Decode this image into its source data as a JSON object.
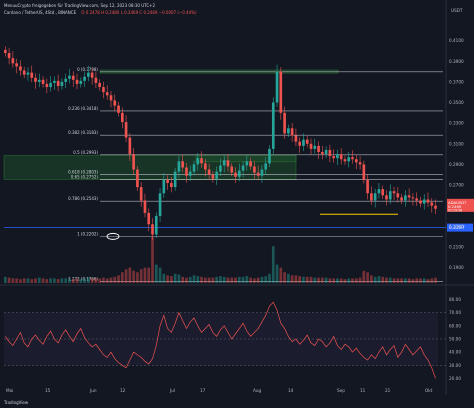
{
  "header": {
    "publisher": "MenuuCrypto freigegeben für TradingView.com, Sep 12, 2023 08:30 UTC+2",
    "symbol": "Cardano / TetherUS, 4Std., BINANCE",
    "ohlc": "O 0.2478  H 0.2480  L 0.2469  C 0.2469  −0.0007 (−0.44%)"
  },
  "footer": {
    "brand": "TradingView"
  },
  "colors": {
    "background": "#131722",
    "up": "#26a69a",
    "down": "#ef5350",
    "fib_line": "#d1d4dc",
    "support": "#f5d000",
    "price_tag": "#ef5350",
    "current_level": "#2962ff",
    "rsi": "#ef5350",
    "zone": "#1e4d2b"
  },
  "chart_data": [
    {
      "type": "candlestick",
      "symbol": "ADAUSDT",
      "price_axis_ticks": [
        0.41,
        0.39,
        0.37,
        0.35,
        0.33,
        0.31,
        0.29,
        0.27,
        0.25,
        0.23,
        0.21,
        0.19
      ],
      "price_axis_labels": [
        "0.4100",
        "0.3900",
        "0.3700",
        "0.3500",
        "0.3300",
        "0.3100",
        "0.2900",
        "0.2700",
        "0.2500",
        "0.2300",
        "0.2100",
        "0.1900"
      ],
      "price_axis_unit": "USDT",
      "ylim": [
        0.175,
        0.43
      ],
      "time_axis_labels": [
        "Mai",
        "15",
        "Jun",
        "12",
        "Jul",
        "17",
        "Aug",
        "14",
        "Sep",
        "11",
        "21",
        "Okt"
      ],
      "fib_levels": [
        {
          "label": "0 (0.3798)",
          "value": 0.3798
        },
        {
          "label": "0.236 (0.3418)",
          "value": 0.3418
        },
        {
          "label": "0.382 (0.3183)",
          "value": 0.3183
        },
        {
          "label": "0.5 (0.2993)",
          "value": 0.2993
        },
        {
          "label": "0.618 (0.2803)",
          "value": 0.2803
        },
        {
          "label": "0.65 (0.2752)",
          "value": 0.2752
        },
        {
          "label": "0.786 (0.2543)",
          "value": 0.2543
        },
        {
          "label": "1 (0.2202)",
          "value": 0.2202
        },
        {
          "label": "1.272 (0.1766)",
          "value": 0.1766
        }
      ],
      "zones": [
        {
          "from": 0.2755,
          "to": 0.2985
        },
        {
          "from": 0.2925,
          "to": 0.2985
        },
        {
          "from": 0.3785,
          "to": 0.3815
        }
      ],
      "current_price": {
        "label": "ADAUSDT",
        "value": "0.2469",
        "countdown": "01:29:58"
      },
      "current_level": {
        "value": 0.2287,
        "label": "0.2287"
      },
      "support_level": 0.2417,
      "close_series": [
        0.398,
        0.393,
        0.388,
        0.385,
        0.381,
        0.377,
        0.379,
        0.374,
        0.37,
        0.372,
        0.368,
        0.365,
        0.369,
        0.371,
        0.366,
        0.37,
        0.373,
        0.376,
        0.372,
        0.368,
        0.371,
        0.375,
        0.379,
        0.374,
        0.369,
        0.365,
        0.36,
        0.357,
        0.352,
        0.347,
        0.34,
        0.331,
        0.316,
        0.3,
        0.285,
        0.268,
        0.255,
        0.243,
        0.232,
        0.222,
        0.24,
        0.262,
        0.275,
        0.272,
        0.268,
        0.283,
        0.293,
        0.287,
        0.279,
        0.283,
        0.29,
        0.296,
        0.291,
        0.285,
        0.28,
        0.276,
        0.283,
        0.289,
        0.294,
        0.288,
        0.282,
        0.278,
        0.284,
        0.289,
        0.293,
        0.288,
        0.282,
        0.279,
        0.285,
        0.291,
        0.305,
        0.35,
        0.38,
        0.34,
        0.32,
        0.325,
        0.318,
        0.312,
        0.308,
        0.314,
        0.31,
        0.305,
        0.308,
        0.302,
        0.3,
        0.304,
        0.298,
        0.296,
        0.3,
        0.295,
        0.293,
        0.297,
        0.295,
        0.292,
        0.29,
        0.275,
        0.262,
        0.255,
        0.262,
        0.266,
        0.26,
        0.256,
        0.264,
        0.262,
        0.258,
        0.255,
        0.26,
        0.258,
        0.257,
        0.255,
        0.252,
        0.256,
        0.253,
        0.25,
        0.247
      ],
      "volume_series": [
        0.4,
        0.35,
        0.3,
        0.3,
        0.25,
        0.3,
        0.3,
        0.25,
        0.3,
        0.35,
        0.3,
        0.25,
        0.3,
        0.3,
        0.25,
        0.3,
        0.3,
        0.3,
        0.25,
        0.3,
        0.25,
        0.3,
        0.35,
        0.3,
        0.3,
        0.3,
        0.35,
        0.3,
        0.35,
        0.4,
        0.5,
        0.7,
        0.9,
        1.0,
        0.8,
        0.7,
        0.9,
        1.0,
        1.0,
        3.0,
        1.2,
        1.0,
        0.6,
        0.5,
        0.45,
        0.6,
        0.55,
        0.4,
        0.35,
        0.4,
        0.5,
        0.45,
        0.4,
        0.35,
        0.35,
        0.35,
        0.4,
        0.45,
        0.4,
        0.35,
        0.35,
        0.35,
        0.4,
        0.4,
        0.45,
        0.35,
        0.3,
        0.35,
        0.4,
        0.45,
        0.6,
        2.4,
        1.2,
        1.0,
        0.7,
        0.6,
        0.5,
        0.5,
        0.45,
        0.4,
        0.4,
        0.4,
        0.35,
        0.35,
        0.35,
        0.35,
        0.3,
        0.3,
        0.3,
        0.3,
        0.25,
        0.3,
        0.3,
        0.3,
        0.35,
        0.8,
        0.7,
        0.5,
        0.4,
        0.45,
        0.4,
        0.35,
        0.35,
        0.3,
        0.3,
        0.3,
        0.3,
        0.3,
        0.25,
        0.3,
        0.3,
        0.3,
        0.25,
        0.3,
        0.35
      ]
    },
    {
      "type": "line",
      "name": "RSI",
      "axis_ticks": [
        80,
        70,
        60,
        50,
        40,
        30,
        20
      ],
      "axis_labels": [
        "80.00",
        "70.00",
        "60.00",
        "50.00",
        "40.00",
        "30.00",
        "20.00"
      ],
      "ylim": [
        15,
        85
      ],
      "band": [
        30,
        70
      ],
      "values": [
        52,
        48,
        45,
        50,
        55,
        47,
        44,
        50,
        53,
        49,
        46,
        52,
        56,
        50,
        47,
        53,
        57,
        52,
        48,
        54,
        58,
        51,
        47,
        44,
        46,
        42,
        38,
        36,
        40,
        35,
        32,
        30,
        28,
        34,
        40,
        38,
        36,
        33,
        31,
        35,
        45,
        60,
        68,
        58,
        55,
        62,
        70,
        64,
        58,
        63,
        66,
        60,
        55,
        58,
        61,
        55,
        52,
        57,
        60,
        55,
        50,
        54,
        58,
        62,
        56,
        52,
        55,
        58,
        63,
        68,
        75,
        78,
        72,
        62,
        58,
        52,
        48,
        50,
        46,
        49,
        53,
        47,
        45,
        50,
        48,
        44,
        47,
        52,
        45,
        42,
        46,
        44,
        40,
        43,
        39,
        36,
        34,
        38,
        35,
        40,
        44,
        38,
        42,
        45,
        36,
        40,
        46,
        42,
        38,
        41,
        44,
        38,
        34,
        28,
        20
      ]
    }
  ]
}
